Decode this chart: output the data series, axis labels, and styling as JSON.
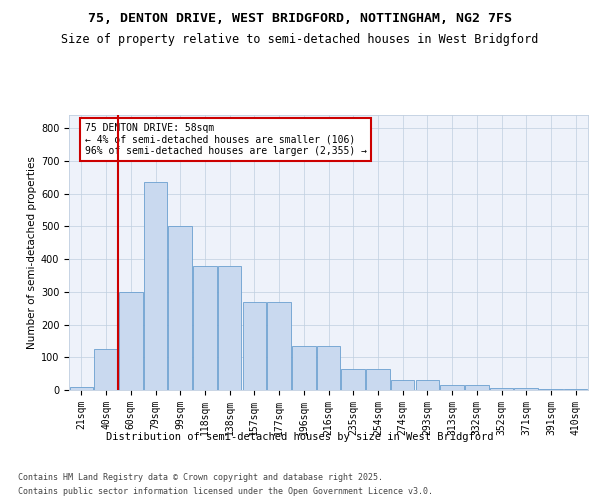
{
  "title1": "75, DENTON DRIVE, WEST BRIDGFORD, NOTTINGHAM, NG2 7FS",
  "title2": "Size of property relative to semi-detached houses in West Bridgford",
  "xlabel": "Distribution of semi-detached houses by size in West Bridgford",
  "ylabel": "Number of semi-detached properties",
  "categories": [
    "21sqm",
    "40sqm",
    "60sqm",
    "79sqm",
    "99sqm",
    "118sqm",
    "138sqm",
    "157sqm",
    "177sqm",
    "196sqm",
    "216sqm",
    "235sqm",
    "254sqm",
    "274sqm",
    "293sqm",
    "313sqm",
    "332sqm",
    "352sqm",
    "371sqm",
    "391sqm",
    "410sqm"
  ],
  "values": [
    10,
    125,
    300,
    635,
    500,
    380,
    380,
    270,
    270,
    135,
    135,
    65,
    65,
    30,
    30,
    15,
    15,
    7,
    5,
    2,
    2
  ],
  "bar_color": "#c9d9ef",
  "bar_edge_color": "#6a9fd0",
  "vline_color": "#cc0000",
  "annotation_title": "75 DENTON DRIVE: 58sqm",
  "annotation_line1": "← 4% of semi-detached houses are smaller (106)",
  "annotation_line2": "96% of semi-detached houses are larger (2,355) →",
  "annotation_box_color": "#cc0000",
  "annotation_bg": "#ffffff",
  "ylim": [
    0,
    840
  ],
  "yticks": [
    0,
    100,
    200,
    300,
    400,
    500,
    600,
    700,
    800
  ],
  "footer1": "Contains HM Land Registry data © Crown copyright and database right 2025.",
  "footer2": "Contains public sector information licensed under the Open Government Licence v3.0.",
  "bg_color": "#ffffff",
  "plot_bg_color": "#eef2fa",
  "grid_color": "#c0cfe0",
  "title_fontsize": 9.5,
  "subtitle_fontsize": 8.5,
  "tick_fontsize": 7,
  "ylabel_fontsize": 7.5,
  "xlabel_fontsize": 7.5,
  "footer_fontsize": 6,
  "annot_fontsize": 7
}
